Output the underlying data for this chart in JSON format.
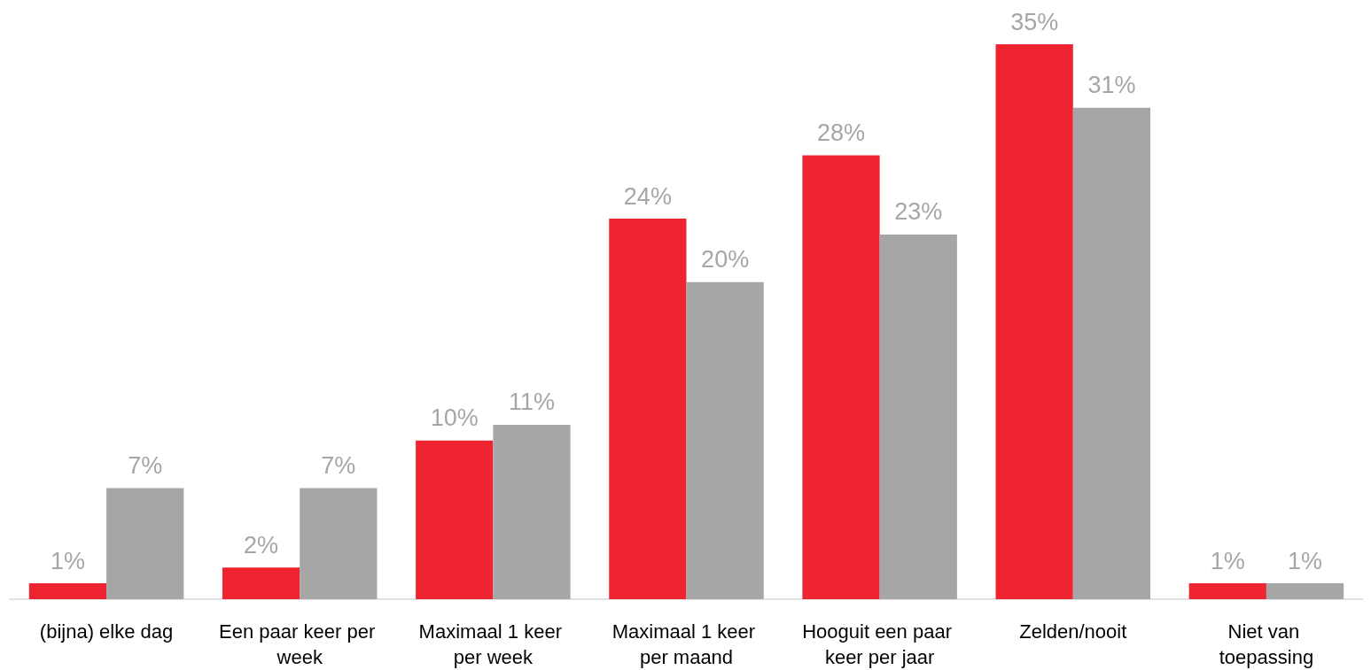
{
  "chart_data": {
    "type": "bar",
    "categories": [
      "(bijna) elke dag",
      "Een paar keer per week",
      "Maximaal 1 keer per week",
      "Maximaal 1 keer per maand",
      "Hooguit een paar keer per jaar",
      "Zelden/nooit",
      "Niet van toepassing"
    ],
    "series": [
      {
        "color": "#ee2430",
        "values": [
          1,
          2,
          10,
          24,
          28,
          35,
          1
        ],
        "value_labels": [
          "1%",
          "2%",
          "10%",
          "24%",
          "28%",
          "35%",
          "1%"
        ]
      },
      {
        "color": "#a6a6a6",
        "values": [
          7,
          7,
          11,
          20,
          23,
          31,
          1
        ],
        "value_labels": [
          "7%",
          "7%",
          "11%",
          "20%",
          "23%",
          "31%",
          "1%"
        ]
      }
    ]
  }
}
